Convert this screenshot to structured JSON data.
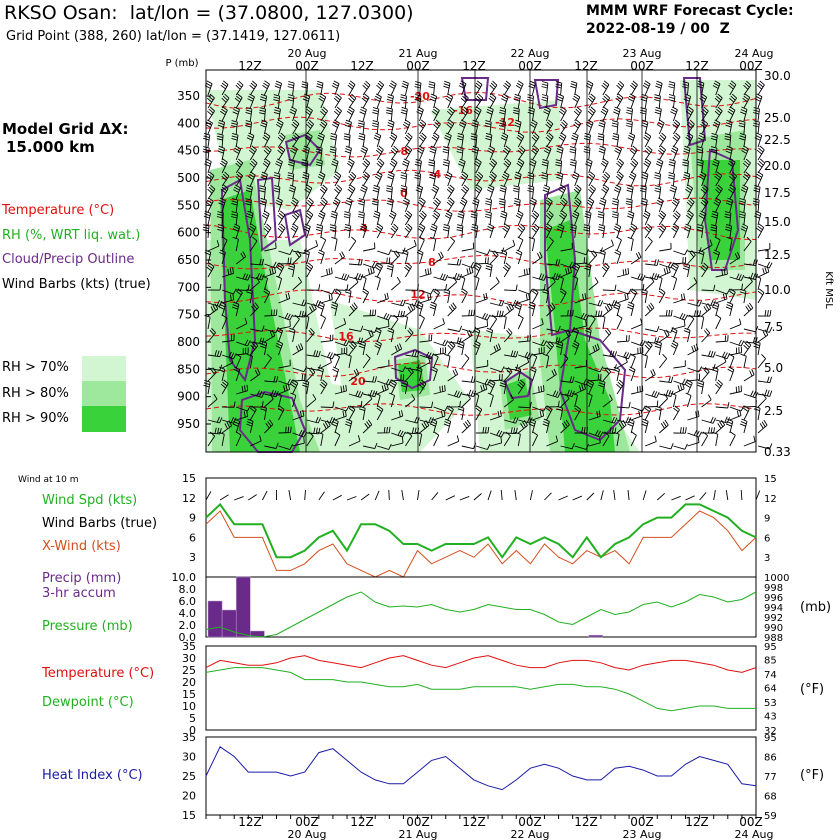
{
  "header": {
    "title": "RKSO Osan:  lat/lon = (37.0800, 127.0300)",
    "subtitle": "Grid Point (388, 260) lat/lon = (37.1419, 127.0611)",
    "cycle_line1": "MMM WRF Forecast Cycle:",
    "cycle_line2": "2022-08-19 / 00  Z"
  },
  "model_grid": {
    "line1": "Model Grid ΔX:",
    "line2": "15.000 km"
  },
  "colors": {
    "temperature": "#e01010",
    "rh": "#22b022",
    "cloud": "#6a2a8a",
    "heat": "#1a1aa8",
    "xwind": "#d2501e",
    "rh70": "#d2f5d2",
    "rh80": "#9de89d",
    "rh90": "#3ad23a"
  },
  "legend": {
    "temperature": "Temperature (°C)",
    "rh": "RH (%, WRT liq. wat.)",
    "cloud": "Cloud/Precip Outline",
    "barbs": "Wind Barbs (kts) (true)",
    "rh70": "RH > 70%",
    "rh80": "RH > 80%",
    "rh90": "RH > 90%"
  },
  "time_axis": {
    "top_days": [
      "20 Aug",
      "21 Aug",
      "22 Aug",
      "23 Aug",
      "24 Aug"
    ],
    "bottom_days": [
      "20 Aug",
      "21 Aug",
      "22 Aug",
      "23 Aug",
      "24 Aug"
    ],
    "hour_labels": [
      "12Z",
      "00Z",
      "12Z",
      "00Z",
      "12Z",
      "00Z",
      "12Z",
      "00Z",
      "12Z",
      "00Z"
    ]
  },
  "chart_data": [
    {
      "type": "heatmap",
      "panel": "cross-section",
      "ylabel": "P (mb)",
      "y2label": "Kft MSL",
      "y_ticks": [
        350,
        400,
        450,
        500,
        550,
        600,
        650,
        700,
        750,
        800,
        850,
        900,
        950
      ],
      "y2_ticks": [
        "30.0",
        "25.0",
        "22.5",
        "20.0",
        "17.5",
        "15.0",
        "12.5",
        "10.0",
        "7.5",
        "5.0",
        "2.5",
        "0.33"
      ],
      "temperature_labels": [
        "-20",
        "-16",
        "-12",
        "-8",
        "-4",
        "0",
        "4",
        "8",
        "12",
        "16",
        "20"
      ]
    },
    {
      "type": "line",
      "panel": "wind",
      "title": "Wind at 10 m",
      "y_ticks": [
        3,
        6,
        9,
        12,
        15
      ],
      "series": [
        {
          "name": "Wind Spd (kts)",
          "values": [
            9,
            11,
            8,
            8,
            8,
            3,
            3,
            4,
            6,
            7,
            4,
            8,
            8,
            7,
            5,
            5,
            4,
            5,
            5,
            5,
            6,
            3,
            6,
            5,
            6,
            5,
            3,
            6,
            3,
            5,
            6,
            8,
            9,
            9,
            11,
            11,
            10,
            9,
            7,
            6
          ]
        },
        {
          "name": "X-Wind (kts)",
          "values": [
            8,
            10,
            6,
            6,
            6,
            1,
            1,
            2,
            4,
            5,
            2,
            1,
            0,
            1,
            0,
            4,
            2,
            3,
            4,
            3,
            5,
            2,
            4,
            2,
            5,
            3,
            2,
            4,
            3,
            4,
            2,
            6,
            6,
            6,
            8,
            10,
            9,
            7,
            4,
            6
          ]
        }
      ],
      "labels": {
        "spd": "Wind Spd (kts)",
        "barbs": "Wind Barbs (true)",
        "xwind": "X-Wind (kts)"
      }
    },
    {
      "type": "bar",
      "panel": "precip-pressure",
      "precip_label_1": "Precip (mm)",
      "precip_label_2": "3-hr accum",
      "pressure_label": "Pressure (mb)",
      "unit_right": "(mb)",
      "y_ticks": [
        "0.0",
        "2.0",
        "4.0",
        "6.0",
        "8.0",
        "10.0"
      ],
      "y2_ticks": [
        "988",
        "990",
        "992",
        "994",
        "996",
        "998",
        "1000"
      ],
      "precip_values": [
        6,
        4.5,
        10,
        1,
        0,
        0,
        0,
        0,
        0,
        0,
        0,
        0,
        0,
        0,
        0,
        0,
        0,
        0,
        0,
        0,
        0,
        0,
        0,
        0,
        0,
        0,
        0,
        0.3,
        0,
        0,
        0,
        0,
        0,
        0,
        0,
        0,
        0,
        0,
        0,
        0
      ],
      "pressure_values": [
        989.5,
        990,
        989,
        988.3,
        988,
        988.5,
        990,
        991.5,
        993,
        994.5,
        996,
        997,
        995,
        994,
        994.2,
        994,
        994.5,
        993.5,
        993,
        993.5,
        994.5,
        994,
        993.5,
        993.5,
        992.5,
        991,
        990.5,
        992,
        993.5,
        992.5,
        993,
        994.5,
        995,
        994,
        995,
        996.5,
        996,
        995,
        995.5,
        997
      ]
    },
    {
      "type": "line",
      "panel": "temp-dewpoint",
      "series": [
        {
          "name": "Temperature (°C)",
          "values": [
            26,
            29,
            28,
            27,
            27,
            28,
            30,
            31,
            29,
            28,
            27,
            26,
            28,
            30,
            31,
            29,
            27,
            26,
            28,
            30,
            31,
            29,
            27,
            26,
            26,
            28,
            29,
            29,
            28,
            26,
            25,
            27,
            28,
            29,
            29,
            28,
            27,
            25,
            24,
            26
          ]
        },
        {
          "name": "Dewpoint (°C)",
          "values": [
            24,
            25,
            26,
            26,
            26,
            25,
            24,
            21,
            21,
            21,
            20,
            20,
            19,
            18,
            18,
            19,
            17,
            17,
            17,
            18,
            18,
            18,
            18,
            17,
            18,
            19,
            19,
            18,
            18,
            17,
            15,
            12,
            9,
            8,
            9,
            10,
            10,
            9,
            9,
            9
          ]
        }
      ],
      "y_ticks": [
        0,
        5,
        10,
        15,
        20,
        25,
        30,
        35
      ],
      "y2_ticks": [
        32,
        43,
        53,
        64,
        74,
        85,
        95
      ],
      "unit_right": "(°F)",
      "labels": {
        "temp": "Temperature (°C)",
        "dew": "Dewpoint (°C)"
      }
    },
    {
      "type": "line",
      "panel": "heat-index",
      "series": [
        {
          "name": "Heat Index (°C)",
          "values": [
            25,
            32.5,
            30,
            26,
            26,
            26,
            25,
            26,
            31,
            32,
            29,
            26,
            24,
            23,
            23,
            26,
            29,
            30,
            27,
            24,
            22.5,
            21.5,
            24,
            27,
            28,
            27,
            25,
            24,
            24,
            27,
            27.5,
            26.5,
            25,
            25,
            28,
            30,
            29,
            28,
            23,
            22.5
          ]
        }
      ],
      "y_ticks": [
        15,
        20,
        25,
        30,
        35
      ],
      "y2_ticks": [
        59,
        68,
        77,
        86,
        95
      ],
      "unit_right": "(°F)",
      "labels": {
        "heat": "Heat Index (°C)"
      }
    }
  ]
}
